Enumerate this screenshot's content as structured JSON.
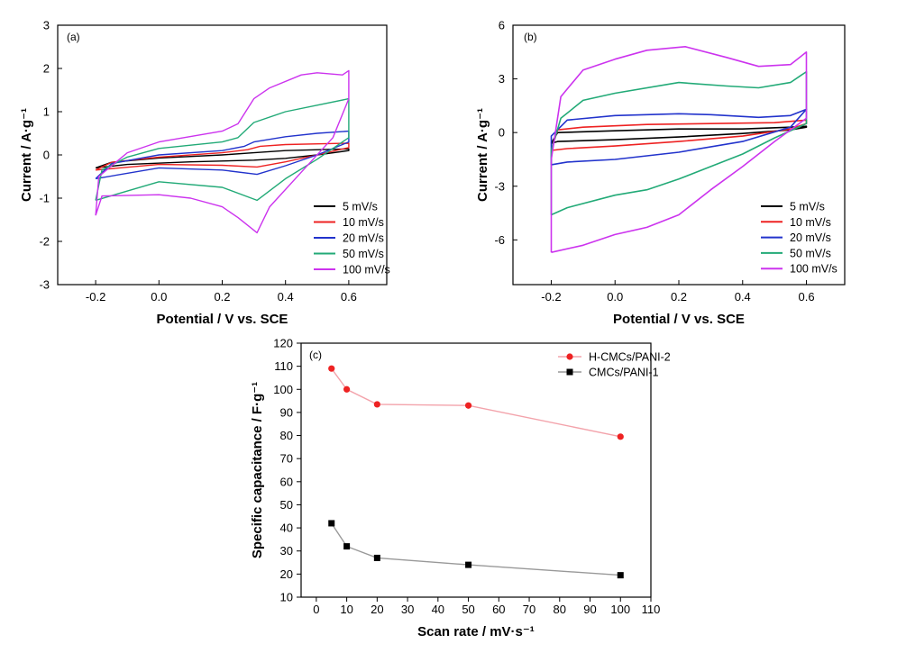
{
  "chart_data": [
    {
      "panel": "(a)",
      "type": "line",
      "xlabel": "Potential / V vs. SCE",
      "ylabel": "Current / A·g⁻¹",
      "xlim": [
        -0.32,
        0.72
      ],
      "ylim": [
        -3,
        3
      ],
      "xticks": [
        -0.2,
        0.0,
        0.2,
        0.4,
        0.6
      ],
      "xtick_labels": [
        "-0.2",
        "0.0",
        "0.2",
        "0.4",
        "0.6"
      ],
      "yticks": [
        -3,
        -2,
        -1,
        0,
        1,
        2,
        3
      ],
      "ytick_labels": [
        "-3",
        "-2",
        "-1",
        "0",
        "1",
        "2",
        "3"
      ],
      "legend_position": "bottom-right",
      "series": [
        {
          "name": "5 mV/s",
          "color": "#000000",
          "forward": [
            [
              -0.2,
              -0.3
            ],
            [
              -0.15,
              -0.17
            ],
            [
              0.0,
              -0.07
            ],
            [
              0.2,
              0.0
            ],
            [
              0.3,
              0.05
            ],
            [
              0.4,
              0.1
            ],
            [
              0.6,
              0.14
            ]
          ],
          "reverse": [
            [
              0.6,
              0.1
            ],
            [
              0.5,
              0.0
            ],
            [
              0.4,
              -0.08
            ],
            [
              0.3,
              -0.12
            ],
            [
              0.1,
              -0.16
            ],
            [
              -0.1,
              -0.22
            ],
            [
              -0.2,
              -0.3
            ]
          ]
        },
        {
          "name": "10 mV/s",
          "color": "#ee2222",
          "forward": [
            [
              -0.2,
              -0.35
            ],
            [
              -0.15,
              -0.17
            ],
            [
              0.0,
              -0.05
            ],
            [
              0.2,
              0.05
            ],
            [
              0.28,
              0.12
            ],
            [
              0.32,
              0.2
            ],
            [
              0.4,
              0.24
            ],
            [
              0.6,
              0.27
            ]
          ],
          "reverse": [
            [
              0.6,
              0.17
            ],
            [
              0.5,
              0.0
            ],
            [
              0.4,
              -0.16
            ],
            [
              0.31,
              -0.28
            ],
            [
              0.2,
              -0.24
            ],
            [
              0.0,
              -0.22
            ],
            [
              -0.2,
              -0.35
            ]
          ]
        },
        {
          "name": "20 mV/s",
          "color": "#2233cc",
          "forward": [
            [
              -0.2,
              -0.55
            ],
            [
              -0.15,
              -0.2
            ],
            [
              0.0,
              0.0
            ],
            [
              0.2,
              0.1
            ],
            [
              0.27,
              0.2
            ],
            [
              0.3,
              0.3
            ],
            [
              0.4,
              0.42
            ],
            [
              0.5,
              0.5
            ],
            [
              0.6,
              0.55
            ]
          ],
          "reverse": [
            [
              0.6,
              0.3
            ],
            [
              0.5,
              0.0
            ],
            [
              0.4,
              -0.25
            ],
            [
              0.31,
              -0.45
            ],
            [
              0.2,
              -0.35
            ],
            [
              0.0,
              -0.3
            ],
            [
              -0.2,
              -0.55
            ]
          ]
        },
        {
          "name": "50 mV/s",
          "color": "#22aa77",
          "forward": [
            [
              -0.2,
              -1.05
            ],
            [
              -0.18,
              -0.35
            ],
            [
              -0.1,
              -0.05
            ],
            [
              0.0,
              0.15
            ],
            [
              0.2,
              0.3
            ],
            [
              0.25,
              0.4
            ],
            [
              0.3,
              0.75
            ],
            [
              0.4,
              1.0
            ],
            [
              0.5,
              1.15
            ],
            [
              0.6,
              1.3
            ]
          ],
          "reverse": [
            [
              0.6,
              0.4
            ],
            [
              0.5,
              -0.1
            ],
            [
              0.4,
              -0.55
            ],
            [
              0.31,
              -1.05
            ],
            [
              0.2,
              -0.75
            ],
            [
              0.0,
              -0.62
            ],
            [
              -0.2,
              -1.05
            ]
          ]
        },
        {
          "name": "100 mV/s",
          "color": "#cc33ee",
          "forward": [
            [
              -0.2,
              -1.4
            ],
            [
              -0.19,
              -0.5
            ],
            [
              -0.1,
              0.05
            ],
            [
              0.0,
              0.3
            ],
            [
              0.2,
              0.55
            ],
            [
              0.25,
              0.72
            ],
            [
              0.3,
              1.3
            ],
            [
              0.35,
              1.55
            ],
            [
              0.45,
              1.85
            ],
            [
              0.5,
              1.9
            ],
            [
              0.58,
              1.85
            ],
            [
              0.6,
              1.95
            ]
          ],
          "reverse": [
            [
              0.6,
              1.3
            ],
            [
              0.55,
              0.4
            ],
            [
              0.45,
              -0.4
            ],
            [
              0.35,
              -1.2
            ],
            [
              0.31,
              -1.8
            ],
            [
              0.25,
              -1.45
            ],
            [
              0.2,
              -1.2
            ],
            [
              0.1,
              -1.0
            ],
            [
              0.0,
              -0.92
            ],
            [
              -0.18,
              -0.95
            ],
            [
              -0.2,
              -1.4
            ]
          ]
        }
      ]
    },
    {
      "panel": "(b)",
      "type": "line",
      "xlabel": "Potential / V vs. SCE",
      "ylabel": "Current / A·g⁻¹",
      "xlim": [
        -0.32,
        0.72
      ],
      "ylim": [
        -8.5,
        6
      ],
      "xticks": [
        -0.2,
        0.0,
        0.2,
        0.4,
        0.6
      ],
      "xtick_labels": [
        "-0.2",
        "0.0",
        "0.2",
        "0.4",
        "0.6"
      ],
      "yticks": [
        -6,
        -3,
        0,
        3,
        6
      ],
      "ytick_labels": [
        "-6",
        "-3",
        "0",
        "3",
        "6"
      ],
      "legend_position": "bottom-right",
      "series": [
        {
          "name": "5 mV/s",
          "color": "#000000",
          "forward": [
            [
              -0.2,
              -0.6
            ],
            [
              -0.18,
              -0.5
            ],
            [
              0.0,
              -0.4
            ],
            [
              0.2,
              -0.25
            ],
            [
              0.4,
              -0.05
            ],
            [
              0.55,
              0.15
            ],
            [
              0.6,
              0.3
            ]
          ],
          "reverse": [
            [
              0.6,
              0.35
            ],
            [
              0.55,
              0.3
            ],
            [
              0.4,
              0.2
            ],
            [
              0.2,
              0.2
            ],
            [
              0.0,
              0.1
            ],
            [
              -0.18,
              0.0
            ],
            [
              -0.2,
              -0.6
            ]
          ]
        },
        {
          "name": "10 mV/s",
          "color": "#ee2222",
          "forward": [
            [
              -0.2,
              -1.0
            ],
            [
              -0.15,
              -0.9
            ],
            [
              0.0,
              -0.75
            ],
            [
              0.2,
              -0.5
            ],
            [
              0.4,
              -0.2
            ],
            [
              0.55,
              0.2
            ],
            [
              0.6,
              0.5
            ]
          ],
          "reverse": [
            [
              0.6,
              0.7
            ],
            [
              0.5,
              0.55
            ],
            [
              0.3,
              0.5
            ],
            [
              0.1,
              0.45
            ],
            [
              -0.1,
              0.3
            ],
            [
              -0.18,
              0.15
            ],
            [
              -0.2,
              -1.0
            ]
          ]
        },
        {
          "name": "20 mV/s",
          "color": "#2233cc",
          "forward": [
            [
              -0.2,
              -1.8
            ],
            [
              -0.15,
              -1.65
            ],
            [
              0.0,
              -1.5
            ],
            [
              0.2,
              -1.1
            ],
            [
              0.4,
              -0.5
            ],
            [
              0.55,
              0.3
            ],
            [
              0.6,
              1.3
            ]
          ],
          "reverse": [
            [
              0.6,
              1.3
            ],
            [
              0.55,
              0.95
            ],
            [
              0.45,
              0.85
            ],
            [
              0.3,
              1.0
            ],
            [
              0.2,
              1.05
            ],
            [
              0.0,
              0.95
            ],
            [
              -0.15,
              0.7
            ],
            [
              -0.2,
              -0.2
            ],
            [
              -0.2,
              -1.8
            ]
          ]
        },
        {
          "name": "50 mV/s",
          "color": "#22aa77",
          "forward": [
            [
              -0.2,
              -4.6
            ],
            [
              -0.15,
              -4.2
            ],
            [
              0.0,
              -3.5
            ],
            [
              0.1,
              -3.2
            ],
            [
              0.2,
              -2.6
            ],
            [
              0.3,
              -1.9
            ],
            [
              0.4,
              -1.2
            ],
            [
              0.5,
              -0.3
            ],
            [
              0.6,
              0.5
            ]
          ],
          "reverse": [
            [
              0.6,
              3.4
            ],
            [
              0.55,
              2.8
            ],
            [
              0.45,
              2.5
            ],
            [
              0.35,
              2.6
            ],
            [
              0.2,
              2.8
            ],
            [
              0.0,
              2.2
            ],
            [
              -0.1,
              1.8
            ],
            [
              -0.17,
              0.8
            ],
            [
              -0.2,
              -1.0
            ],
            [
              -0.2,
              -4.6
            ]
          ]
        },
        {
          "name": "100 mV/s",
          "color": "#cc33ee",
          "forward": [
            [
              -0.2,
              -6.7
            ],
            [
              -0.1,
              -6.3
            ],
            [
              0.0,
              -5.7
            ],
            [
              0.1,
              -5.3
            ],
            [
              0.2,
              -4.6
            ],
            [
              0.3,
              -3.2
            ],
            [
              0.4,
              -1.9
            ],
            [
              0.5,
              -0.5
            ],
            [
              0.6,
              0.8
            ]
          ],
          "reverse": [
            [
              0.6,
              4.5
            ],
            [
              0.55,
              3.8
            ],
            [
              0.45,
              3.7
            ],
            [
              0.35,
              4.2
            ],
            [
              0.22,
              4.8
            ],
            [
              0.1,
              4.6
            ],
            [
              0.0,
              4.1
            ],
            [
              -0.1,
              3.5
            ],
            [
              -0.17,
              2.0
            ],
            [
              -0.2,
              -1.5
            ],
            [
              -0.2,
              -6.7
            ]
          ]
        }
      ]
    },
    {
      "panel": "(c)",
      "type": "line",
      "xlabel": "Scan rate / mV·s⁻¹",
      "ylabel": "Specific capacitance / F·g⁻¹",
      "xlim": [
        -5,
        110
      ],
      "ylim": [
        10,
        120
      ],
      "xticks": [
        0,
        10,
        20,
        30,
        40,
        50,
        60,
        70,
        80,
        90,
        100,
        110
      ],
      "xtick_labels": [
        "0",
        "10",
        "20",
        "30",
        "40",
        "50",
        "60",
        "70",
        "80",
        "90",
        "100",
        "110"
      ],
      "yticks": [
        10,
        20,
        30,
        40,
        50,
        60,
        70,
        80,
        90,
        100,
        110,
        120
      ],
      "ytick_labels": [
        "10",
        "20",
        "30",
        "40",
        "50",
        "60",
        "70",
        "80",
        "90",
        "100",
        "110",
        "120"
      ],
      "legend_position": "top-right",
      "series": [
        {
          "name": "H-CMCs/PANI-2",
          "color": "#ee2222",
          "line_color": "#f3a3ab",
          "marker": "circle",
          "x": [
            5,
            10,
            20,
            50,
            100
          ],
          "y": [
            109,
            100,
            93.5,
            93,
            79.5
          ]
        },
        {
          "name": "CMCs/PANI-1",
          "color": "#000000",
          "line_color": "#999999",
          "marker": "square",
          "x": [
            5,
            10,
            20,
            50,
            100
          ],
          "y": [
            42,
            32,
            27,
            24,
            19.5
          ]
        }
      ]
    }
  ]
}
